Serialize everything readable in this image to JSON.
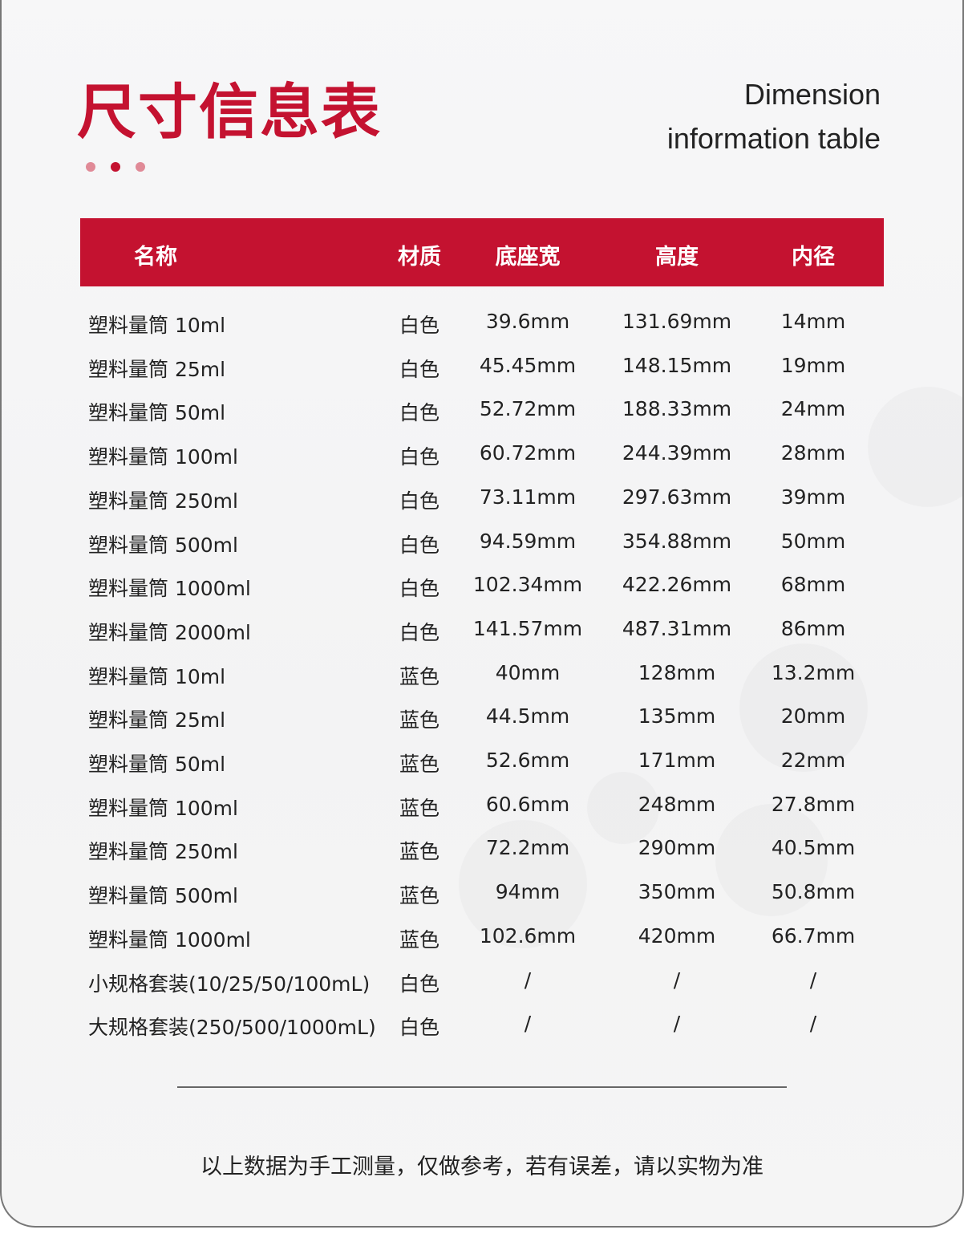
{
  "title": "尺寸信息表",
  "subtitle_line1": "Dimension",
  "subtitle_line2": "information table",
  "colors": {
    "accent": "#c41230",
    "dot_light": "#e08a97"
  },
  "table": {
    "headers": [
      "名称",
      "材质",
      "底座宽",
      "高度",
      "内径"
    ],
    "rows": [
      [
        "塑料量筒 10ml",
        "白色",
        "39.6mm",
        "131.69mm",
        "14mm"
      ],
      [
        "塑料量筒 25ml",
        "白色",
        "45.45mm",
        "148.15mm",
        "19mm"
      ],
      [
        "塑料量筒 50ml",
        "白色",
        "52.72mm",
        "188.33mm",
        "24mm"
      ],
      [
        "塑料量筒 100ml",
        "白色",
        "60.72mm",
        "244.39mm",
        "28mm"
      ],
      [
        "塑料量筒 250ml",
        "白色",
        "73.11mm",
        "297.63mm",
        "39mm"
      ],
      [
        "塑料量筒 500ml",
        "白色",
        "94.59mm",
        "354.88mm",
        "50mm"
      ],
      [
        "塑料量筒 1000ml",
        "白色",
        "102.34mm",
        "422.26mm",
        "68mm"
      ],
      [
        "塑料量筒 2000ml",
        "白色",
        "141.57mm",
        "487.31mm",
        "86mm"
      ],
      [
        "塑料量筒 10ml",
        "蓝色",
        "40mm",
        "128mm",
        "13.2mm"
      ],
      [
        "塑料量筒 25ml",
        "蓝色",
        "44.5mm",
        "135mm",
        "20mm"
      ],
      [
        "塑料量筒 50ml",
        "蓝色",
        "52.6mm",
        "171mm",
        "22mm"
      ],
      [
        "塑料量筒 100ml",
        "蓝色",
        "60.6mm",
        "248mm",
        "27.8mm"
      ],
      [
        "塑料量筒 250ml",
        "蓝色",
        "72.2mm",
        "290mm",
        "40.5mm"
      ],
      [
        "塑料量筒 500ml",
        "蓝色",
        "94mm",
        "350mm",
        "50.8mm"
      ],
      [
        "塑料量筒 1000ml",
        "蓝色",
        "102.6mm",
        "420mm",
        "66.7mm"
      ],
      [
        "小规格套装(10/25/50/100mL)",
        "白色",
        "/",
        "/",
        "/"
      ],
      [
        "大规格套装(250/500/1000mL)",
        "白色",
        "/",
        "/",
        "/"
      ]
    ]
  },
  "note": "以上数据为手工测量，仅做参考，若有误差，请以实物为准"
}
